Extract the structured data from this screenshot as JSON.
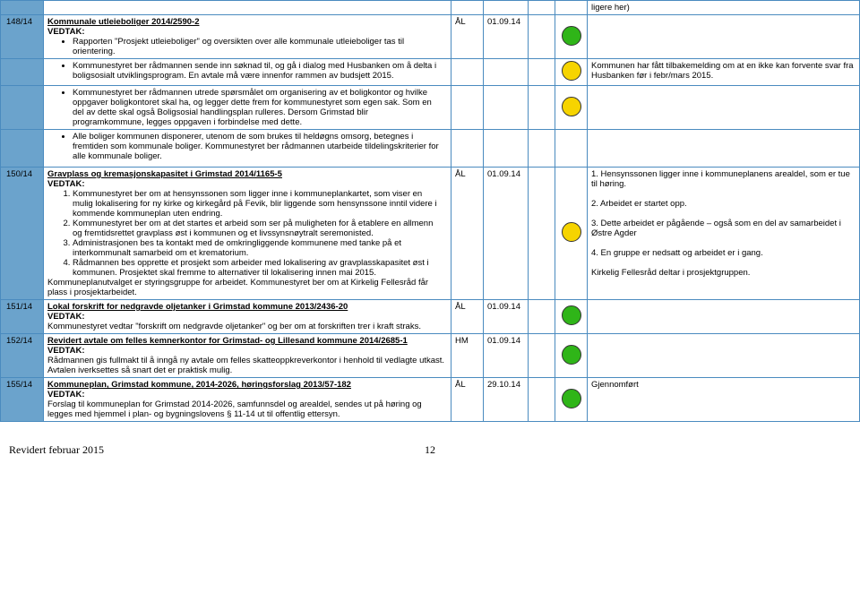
{
  "colors": {
    "headerBlue": "#6ba3cc",
    "borderBlue": "#4a8bbf",
    "green": "#2fb518",
    "yellow": "#f6d400"
  },
  "topNote": "ligere her)",
  "rows": {
    "r148": {
      "id": "148/14",
      "title": "Kommunale utleieboliger 2014/2590-2",
      "vedtak": "VEDTAK:",
      "b1": "Rapporten \"Prosjekt utleieboliger\" og oversikten over alle kommunale utleieboliger tas til orientering.",
      "init": "ÅL",
      "date": "01.09.14",
      "sub2_b": "Kommunestyret ber rådmannen sende inn søknad til, og gå i dialog med Husbanken om å delta i boligsosialt utviklingsprogram. En avtale må være innenfor rammen av budsjett 2015.",
      "sub2_note": "Kommunen har fått tilbakemelding om at en ikke kan forvente svar fra Husbanken før i febr/mars 2015.",
      "sub3_b": "Kommunestyret ber rådmannen utrede spørsmålet om organisering av et boligkontor og hvilke oppgaver boligkontoret skal ha, og legger dette frem for kommunestyret som egen sak. Som en del av dette skal også Boligsosial handlingsplan rulleres. Dersom Grimstad blir programkommune, legges oppgaven i forbindelse med dette.",
      "sub4_b": "Alle boliger kommunen disponerer, utenom de som brukes til heldøgns omsorg, betegnes i fremtiden som kommunale boliger. Kommunestyret ber rådmannen utarbeide tildelingskriterier for alle kommunale boliger."
    },
    "r150": {
      "id": "150/14",
      "title": "Gravplass og kremasjonskapasitet i Grimstad 2014/1165-5",
      "vedtak": "VEDTAK:",
      "li1": "Kommunestyret ber om at hensynssonen som ligger inne i kommuneplankartet, som viser en mulig lokalisering for ny kirke og kirkegård på Fevik, blir liggende som hensynssone inntil videre i kommende kommuneplan uten endring.",
      "li2": "Kommunestyret ber om at det startes et arbeid som ser på muligheten for å etablere en allmenn og fremtidsrettet gravplass øst i kommunen og et livssynsnøytralt seremonisted.",
      "li3": "Administrasjonen bes ta kontakt med de omkringliggende kommunene med tanke på et interkommunalt samarbeid om et krematorium.",
      "li4": "Rådmannen bes opprette et prosjekt som arbeider med lokalisering av gravplasskapasitet øst i kommunen. Prosjektet skal fremme to alternativer til lokalisering innen mai 2015.",
      "tail": "Kommuneplanutvalget er styringsgruppe for arbeidet. Kommunestyret ber om at Kirkelig Fellesråd får plass i prosjektarbeidet.",
      "init": "ÅL",
      "date": "01.09.14",
      "note1": "1. Hensynssonen ligger inne i kommuneplanens arealdel, som er tue til høring.",
      "note2": "2. Arbeidet er startet opp.",
      "note3": "3. Dette arbeidet er pågående – også som en del av samarbeidet i Østre Agder",
      "note4": "4. En gruppe er nedsatt og arbeidet er i gang.",
      "note5": "Kirkelig Fellesråd deltar i prosjektgruppen."
    },
    "r151": {
      "id": "151/14",
      "title": "Lokal forskrift for nedgravde oljetanker i Grimstad kommune 2013/2436-20",
      "vedtak": "VEDTAK:",
      "body": "Kommunestyret vedtar \"forskrift om nedgravde oljetanker\" og ber om at forskriften trer i kraft straks.",
      "init": "ÅL",
      "date": "01.09.14"
    },
    "r152": {
      "id": "152/14",
      "title": "Revidert avtale om felles kemnerkontor for Grimstad- og Lillesand kommune 2014/2685-1",
      "vedtak": "VEDTAK:",
      "body": "Rådmannen gis fullmakt til å inngå ny avtale om felles skatteoppkreverkontor i henhold til vedlagte utkast. Avtalen iverksettes så snart det er praktisk mulig.",
      "init": "HM",
      "date": "01.09.14"
    },
    "r155": {
      "id": "155/14",
      "title": "Kommuneplan, Grimstad kommune, 2014-2026, høringsforslag 2013/57-182",
      "vedtak": "VEDTAK:",
      "body": "Forslag til kommuneplan for Grimstad 2014-2026, samfunnsdel og arealdel, sendes ut på høring og legges med hjemmel i plan- og bygningslovens § 11-14 ut til offentlig ettersyn.",
      "init": "ÅL",
      "date": "29.10.14",
      "note": "Gjennomført"
    }
  },
  "footer": {
    "left": "Revidert februar 2015",
    "page": "12"
  }
}
